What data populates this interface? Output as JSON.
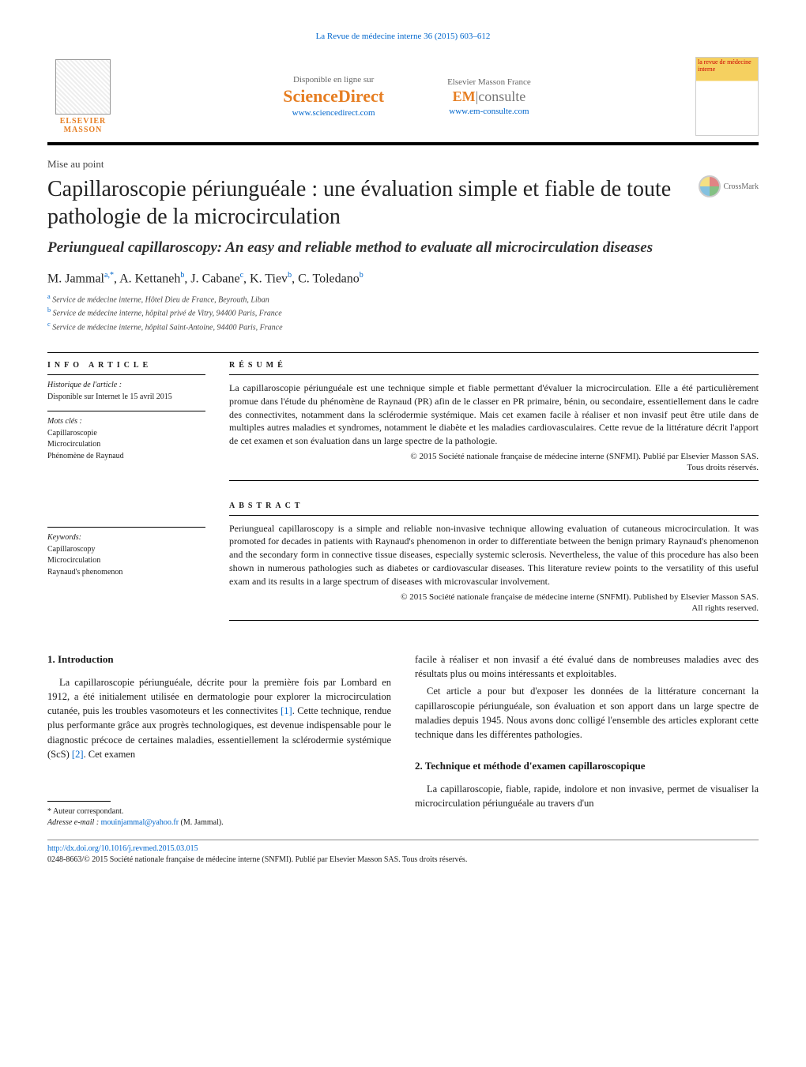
{
  "running_header": "La Revue de médecine interne 36 (2015) 603–612",
  "logos": {
    "elsevier": "ELSEVIER MASSON",
    "sd": {
      "label": "Disponible en ligne sur",
      "brand": "ScienceDirect",
      "url": "www.sciencedirect.com"
    },
    "em": {
      "label": "Elsevier Masson France",
      "brand_prefix": "EM",
      "brand_suffix": "consulte",
      "url": "www.em-consulte.com"
    },
    "journal_cover": "la revue de médecine interne",
    "crossmark": "CrossMark"
  },
  "article_type": "Mise au point",
  "title_fr": "Capillaroscopie périunguéale : une évaluation simple et fiable de toute pathologie de la microcirculation",
  "title_en": "Periungueal capillaroscopy: An easy and reliable method to evaluate all microcirculation diseases",
  "authors_html": "M. Jammal<sup>a,*</sup>, A. Kettaneh<sup>b</sup>, J. Cabane<sup>c</sup>, K. Tiev<sup>b</sup>, C. Toledano<sup>b</sup>",
  "affiliations": [
    {
      "sup": "a",
      "text": "Service de médecine interne, Hôtel Dieu de France, Beyrouth, Liban"
    },
    {
      "sup": "b",
      "text": "Service de médecine interne, hôpital privé de Vitry, 94400 Paris, France"
    },
    {
      "sup": "c",
      "text": "Service de médecine interne, hôpital Saint-Antoine, 94400 Paris, France"
    }
  ],
  "info": {
    "heading": "INFO ARTICLE",
    "history_label": "Historique de l'article :",
    "history_text": "Disponible sur Internet le 15 avril 2015",
    "mots_cles_label": "Mots clés :",
    "mots_cles": [
      "Capillaroscopie",
      "Microcirculation",
      "Phénomène de Raynaud"
    ],
    "keywords_label": "Keywords:",
    "keywords": [
      "Capillaroscopy",
      "Microcirculation",
      "Raynaud's phenomenon"
    ]
  },
  "resume": {
    "heading": "RÉSUMÉ",
    "body": "La capillaroscopie périunguéale est une technique simple et fiable permettant d'évaluer la microcirculation. Elle a été particulièrement promue dans l'étude du phénomène de Raynaud (PR) afin de le classer en PR primaire, bénin, ou secondaire, essentiellement dans le cadre des connectivites, notamment dans la sclérodermie systémique. Mais cet examen facile à réaliser et non invasif peut être utile dans de multiples autres maladies et syndromes, notamment le diabète et les maladies cardiovasculaires. Cette revue de la littérature décrit l'apport de cet examen et son évaluation dans un large spectre de la pathologie.",
    "copyright1": "© 2015 Société nationale française de médecine interne (SNFMI). Publié par Elsevier Masson SAS.",
    "copyright2": "Tous droits réservés."
  },
  "abstract": {
    "heading": "ABSTRACT",
    "body": "Periungueal capillaroscopy is a simple and reliable non-invasive technique allowing evaluation of cutaneous microcirculation. It was promoted for decades in patients with Raynaud's phenomenon in order to differentiate between the benign primary Raynaud's phenomenon and the secondary form in connective tissue diseases, especially systemic sclerosis. Nevertheless, the value of this procedure has also been shown in numerous pathologies such as diabetes or cardiovascular diseases. This literature review points to the versatility of this useful exam and its results in a large spectrum of diseases with microvascular involvement.",
    "copyright1": "© 2015 Société nationale française de médecine interne (SNFMI). Published by Elsevier Masson SAS.",
    "copyright2": "All rights reserved."
  },
  "body": {
    "sec1_heading": "1.  Introduction",
    "sec1_p1_a": "La capillaroscopie périunguéale, décrite pour la première fois par Lombard en 1912, a été initialement utilisée en dermatologie pour explorer la microcirculation cutanée, puis les troubles vasomoteurs et les connectivites ",
    "sec1_p1_ref1": "[1]",
    "sec1_p1_b": ". Cette technique, rendue plus performante grâce aux progrès technologiques, est devenue indispensable pour le diagnostic précoce de certaines maladies, essentiellement la sclérodermie systémique (ScS) ",
    "sec1_p1_ref2": "[2]",
    "sec1_p1_c": ". Cet examen",
    "sec1_p1_cont": "facile à réaliser et non invasif a été évalué dans de nombreuses maladies avec des résultats plus ou moins intéressants et exploitables.",
    "sec1_p2": "Cet article a pour but d'exposer les données de la littérature concernant la capillaroscopie périunguéale, son évaluation et son apport dans un large spectre de maladies depuis 1945. Nous avons donc colligé l'ensemble des articles explorant cette technique dans les différentes pathologies.",
    "sec2_heading": "2.  Technique et méthode d'examen capillaroscopique",
    "sec2_p1": "La capillaroscopie, fiable, rapide, indolore et non invasive, permet de visualiser la microcirculation périunguéale au travers d'un"
  },
  "footnotes": {
    "corr": "* Auteur correspondant.",
    "email_label": "Adresse e-mail : ",
    "email": "mouinjammal@yahoo.fr",
    "email_who": " (M. Jammal)."
  },
  "doi": {
    "url": "http://dx.doi.org/10.1016/j.revmed.2015.03.015",
    "line": "0248-8663/© 2015 Société nationale française de médecine interne (SNFMI). Publié par Elsevier Masson SAS. Tous droits réservés."
  },
  "colors": {
    "link": "#0066cc",
    "orange": "#e67e22",
    "text": "#1a1a1a"
  }
}
